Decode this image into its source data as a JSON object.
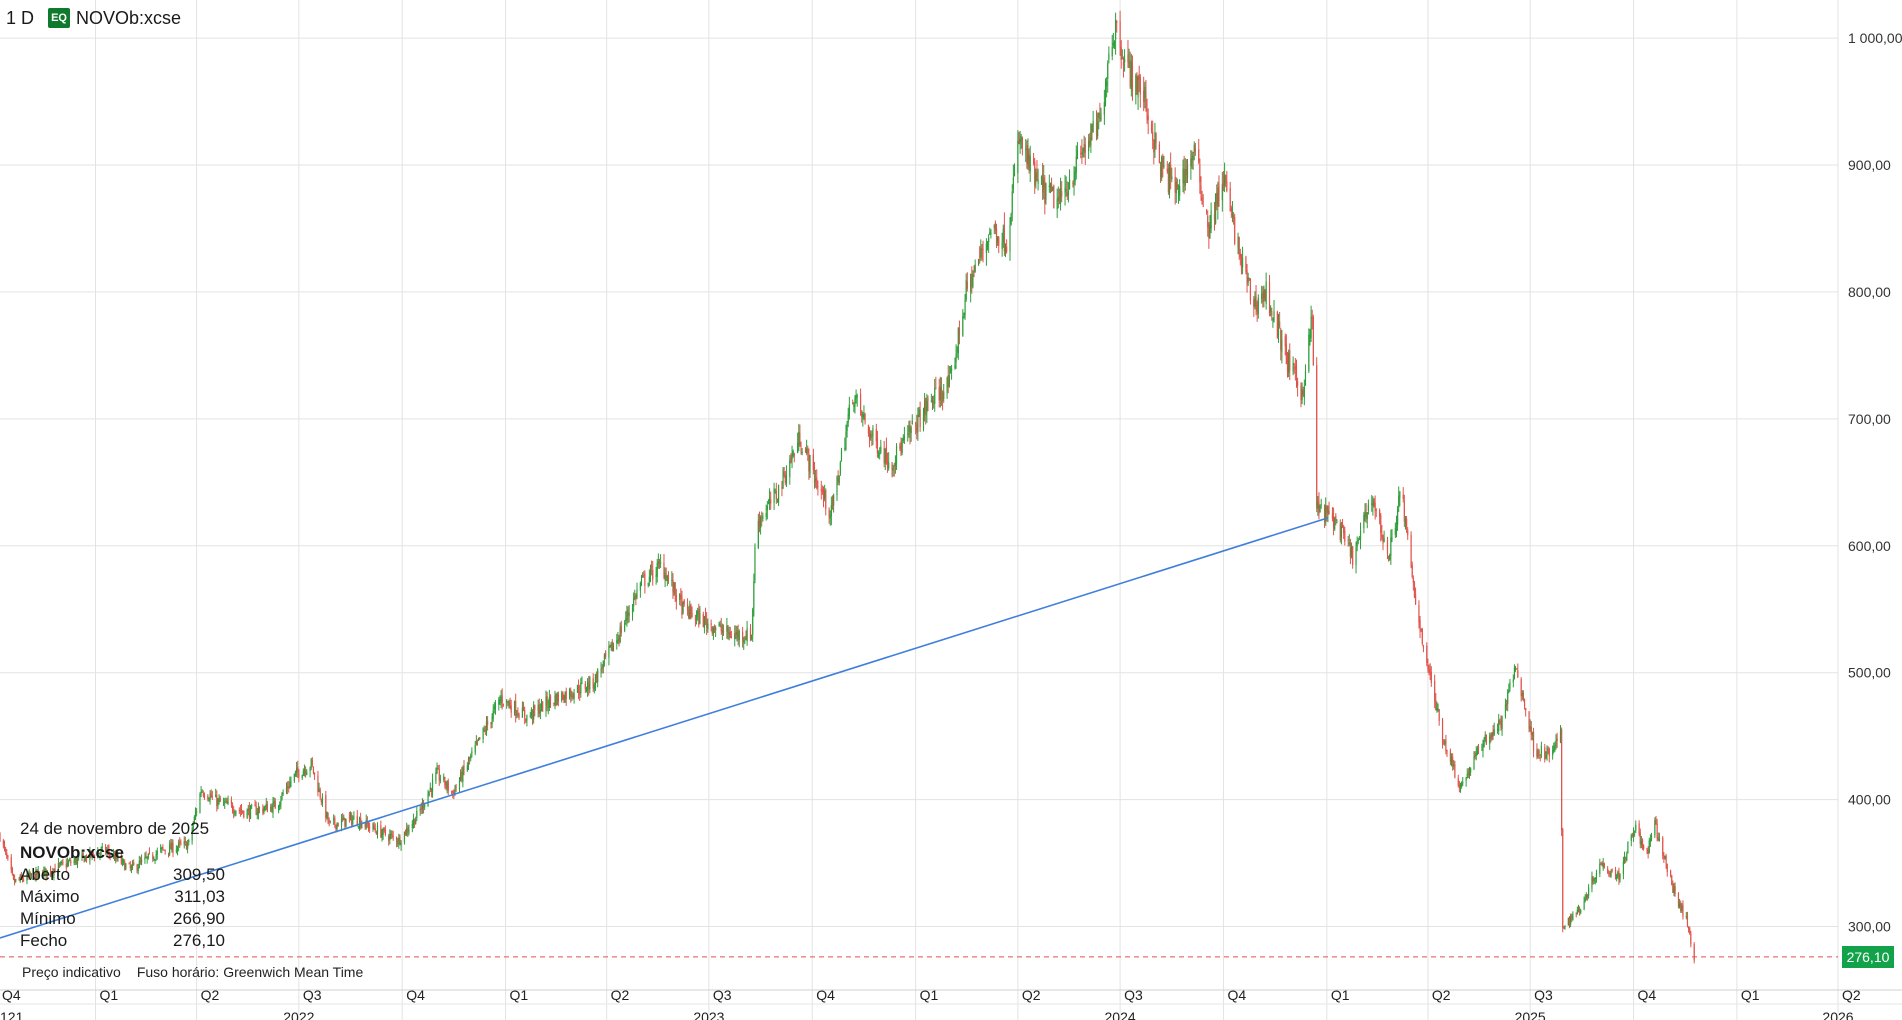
{
  "header": {
    "interval": "1 D",
    "badge": "EQ",
    "symbol": "NOVOb:xcse"
  },
  "tooltip": {
    "date": "24 de novembro de 2025",
    "symbol": "NOVOb:xcse",
    "rows": [
      {
        "label": "Aberto",
        "value": "309,50"
      },
      {
        "label": "Máximo",
        "value": "311,03"
      },
      {
        "label": "Mínimo",
        "value": "266,90"
      },
      {
        "label": "Fecho",
        "value": "276,10"
      }
    ]
  },
  "footer": {
    "indicative": "Preço indicativo",
    "timezone": "Fuso horário: Greenwich Mean Time"
  },
  "last_price_label": "276,10",
  "colors": {
    "up": "#2e9e3a",
    "down": "#e0534a",
    "trendline": "#3f7fdc",
    "grid": "#e3e3e3",
    "last_price": "#12a34a"
  },
  "chart_data": {
    "type": "candlestick",
    "y_axis": {
      "min": 250,
      "max": 1030,
      "ticks": [
        300,
        400,
        500,
        600,
        700,
        800,
        900,
        1000
      ],
      "tick_labels": [
        "300,00",
        "400,00",
        "500,00",
        "600,00",
        "700,00",
        "800,00",
        "900,00",
        "1 000,00"
      ]
    },
    "x_axis": {
      "start": "2021-10-08",
      "end": "2026-04-01",
      "quarters": [
        {
          "date": "2021-10-01",
          "label": "Q4"
        },
        {
          "date": "2022-01-01",
          "label": "Q1"
        },
        {
          "date": "2022-04-01",
          "label": "Q2"
        },
        {
          "date": "2022-07-01",
          "label": "Q3"
        },
        {
          "date": "2022-10-01",
          "label": "Q4"
        },
        {
          "date": "2023-01-01",
          "label": "Q1"
        },
        {
          "date": "2023-04-01",
          "label": "Q2"
        },
        {
          "date": "2023-07-01",
          "label": "Q3"
        },
        {
          "date": "2023-10-01",
          "label": "Q4"
        },
        {
          "date": "2024-01-01",
          "label": "Q1"
        },
        {
          "date": "2024-04-01",
          "label": "Q2"
        },
        {
          "date": "2024-07-01",
          "label": "Q3"
        },
        {
          "date": "2024-10-01",
          "label": "Q4"
        },
        {
          "date": "2025-01-01",
          "label": "Q1"
        },
        {
          "date": "2025-04-01",
          "label": "Q2"
        },
        {
          "date": "2025-07-01",
          "label": "Q3"
        },
        {
          "date": "2025-10-01",
          "label": "Q4"
        },
        {
          "date": "2026-01-01",
          "label": "Q1"
        },
        {
          "date": "2026-04-01",
          "label": "Q2"
        }
      ],
      "years": [
        {
          "date": "2021-10-08",
          "label": "121"
        },
        {
          "date": "2022-07-01",
          "label": "2022"
        },
        {
          "date": "2023-07-01",
          "label": "2023"
        },
        {
          "date": "2024-07-01",
          "label": "2024"
        },
        {
          "date": "2025-07-01",
          "label": "2025"
        },
        {
          "date": "2026-04-01",
          "label": "2026"
        }
      ]
    },
    "series": [
      {
        "type": "close_path",
        "points": [
          [
            "2021-10-08",
            372
          ],
          [
            "2021-10-20",
            335
          ],
          [
            "2021-11-15",
            342
          ],
          [
            "2021-12-15",
            352
          ],
          [
            "2022-01-10",
            360
          ],
          [
            "2022-02-01",
            345
          ],
          [
            "2022-03-01",
            360
          ],
          [
            "2022-03-25",
            365
          ],
          [
            "2022-04-05",
            408
          ],
          [
            "2022-04-20",
            398
          ],
          [
            "2022-05-15",
            390
          ],
          [
            "2022-06-10",
            395
          ],
          [
            "2022-06-28",
            420
          ],
          [
            "2022-07-12",
            428
          ],
          [
            "2022-07-28",
            380
          ],
          [
            "2022-08-20",
            385
          ],
          [
            "2022-09-10",
            375
          ],
          [
            "2022-09-28",
            368
          ],
          [
            "2022-10-15",
            388
          ],
          [
            "2022-11-01",
            420
          ],
          [
            "2022-11-15",
            405
          ],
          [
            "2022-12-05",
            440
          ],
          [
            "2022-12-28",
            480
          ],
          [
            "2023-01-20",
            465
          ],
          [
            "2023-02-10",
            478
          ],
          [
            "2023-03-01",
            485
          ],
          [
            "2023-03-20",
            492
          ],
          [
            "2023-04-12",
            530
          ],
          [
            "2023-05-01",
            570
          ],
          [
            "2023-05-20",
            585
          ],
          [
            "2023-06-08",
            550
          ],
          [
            "2023-06-28",
            540
          ],
          [
            "2023-07-20",
            530
          ],
          [
            "2023-08-08",
            530
          ],
          [
            "2023-08-12",
            618
          ],
          [
            "2023-08-30",
            640
          ],
          [
            "2023-09-20",
            685
          ],
          [
            "2023-10-05",
            650
          ],
          [
            "2023-10-18",
            625
          ],
          [
            "2023-11-06",
            720
          ],
          [
            "2023-11-20",
            690
          ],
          [
            "2023-12-10",
            665
          ],
          [
            "2023-12-28",
            690
          ],
          [
            "2024-01-15",
            715
          ],
          [
            "2024-02-01",
            728
          ],
          [
            "2024-02-15",
            800
          ],
          [
            "2024-03-08",
            850
          ],
          [
            "2024-03-22",
            840
          ],
          [
            "2024-04-02",
            920
          ],
          [
            "2024-04-18",
            885
          ],
          [
            "2024-05-08",
            870
          ],
          [
            "2024-05-28",
            910
          ],
          [
            "2024-06-14",
            935
          ],
          [
            "2024-06-21",
            990
          ],
          [
            "2024-06-27",
            1010
          ],
          [
            "2024-07-08",
            975
          ],
          [
            "2024-07-22",
            955
          ],
          [
            "2024-08-05",
            900
          ],
          [
            "2024-08-20",
            880
          ],
          [
            "2024-09-05",
            910
          ],
          [
            "2024-09-18",
            850
          ],
          [
            "2024-10-01",
            890
          ],
          [
            "2024-10-15",
            830
          ],
          [
            "2024-10-28",
            790
          ],
          [
            "2024-11-08",
            800
          ],
          [
            "2024-11-25",
            750
          ],
          [
            "2024-12-10",
            720
          ],
          [
            "2024-12-19",
            780
          ],
          [
            "2024-12-23",
            630
          ],
          [
            "2025-01-08",
            620
          ],
          [
            "2025-01-25",
            590
          ],
          [
            "2025-02-10",
            640
          ],
          [
            "2025-02-25",
            590
          ],
          [
            "2025-03-08",
            645
          ],
          [
            "2025-03-20",
            560
          ],
          [
            "2025-04-02",
            500
          ],
          [
            "2025-04-14",
            450
          ],
          [
            "2025-04-30",
            410
          ],
          [
            "2025-05-20",
            445
          ],
          [
            "2025-06-05",
            460
          ],
          [
            "2025-06-18",
            505
          ],
          [
            "2025-07-05",
            440
          ],
          [
            "2025-07-18",
            435
          ],
          [
            "2025-07-28",
            450
          ],
          [
            "2025-07-30",
            300
          ],
          [
            "2025-08-15",
            315
          ],
          [
            "2025-09-01",
            350
          ],
          [
            "2025-09-18",
            340
          ],
          [
            "2025-10-02",
            380
          ],
          [
            "2025-10-12",
            355
          ],
          [
            "2025-10-20",
            380
          ],
          [
            "2025-11-05",
            330
          ],
          [
            "2025-11-17",
            305
          ],
          [
            "2025-11-24",
            276
          ]
        ]
      },
      {
        "type": "trendline",
        "points": [
          [
            "2021-10-08",
            291
          ],
          [
            "2025-01-02",
            622
          ]
        ]
      }
    ],
    "last_price": 276.1
  }
}
